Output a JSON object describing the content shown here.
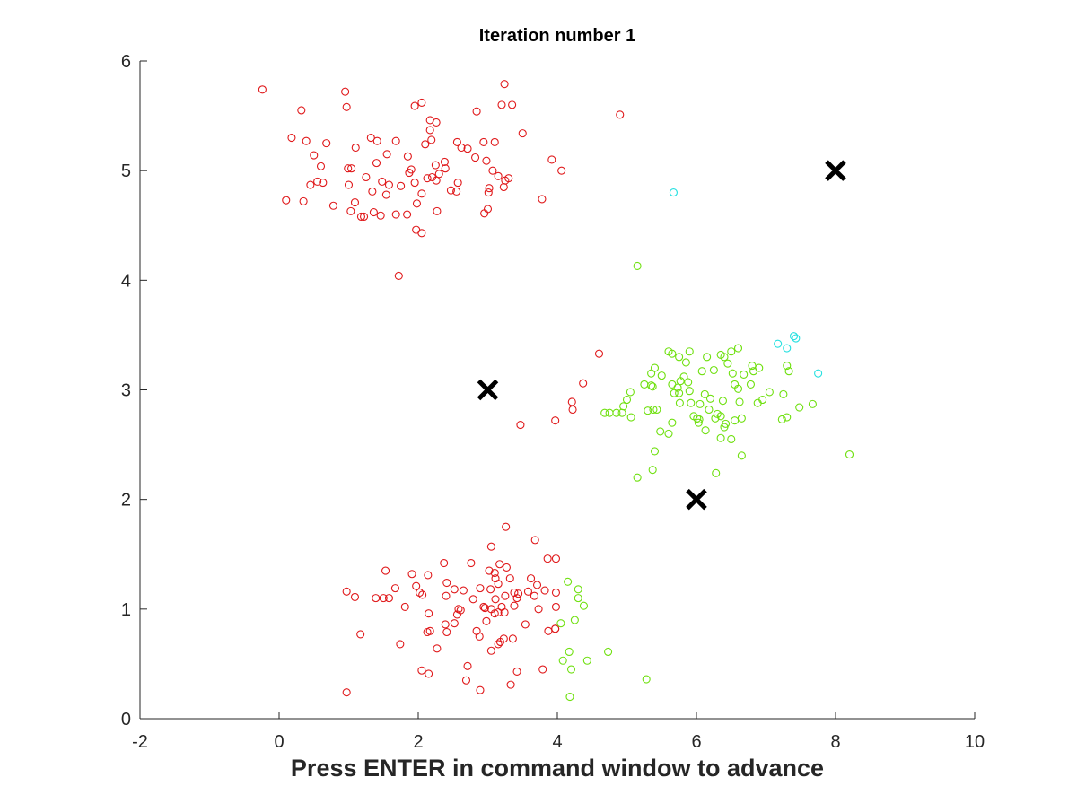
{
  "chart_data": {
    "type": "scatter",
    "title": "Iteration number 1",
    "xlabel": "Press ENTER in command window to advance",
    "ylabel": "",
    "xlim": [
      -2,
      10
    ],
    "ylim": [
      0,
      6
    ],
    "xticks": [
      -2,
      0,
      2,
      4,
      6,
      8,
      10
    ],
    "yticks": [
      0,
      1,
      2,
      3,
      4,
      5,
      6
    ],
    "grid": false,
    "legend": "none",
    "marker": "open-circle",
    "series": [
      {
        "color": "#e0191b",
        "points": [
          [
            -0.24,
            5.74
          ],
          [
            0.95,
            5.72
          ],
          [
            0.97,
            5.58
          ],
          [
            0.32,
            5.55
          ],
          [
            1.95,
            5.59
          ],
          [
            2.05,
            5.62
          ],
          [
            3.24,
            5.79
          ],
          [
            3.2,
            5.6
          ],
          [
            3.35,
            5.6
          ],
          [
            2.84,
            5.54
          ],
          [
            4.9,
            5.51
          ],
          [
            2.17,
            5.46
          ],
          [
            2.26,
            5.44
          ],
          [
            2.17,
            5.37
          ],
          [
            3.5,
            5.34
          ],
          [
            0.18,
            5.3
          ],
          [
            0.39,
            5.27
          ],
          [
            0.68,
            5.25
          ],
          [
            1.32,
            5.3
          ],
          [
            1.41,
            5.27
          ],
          [
            1.68,
            5.27
          ],
          [
            2.1,
            5.24
          ],
          [
            2.19,
            5.28
          ],
          [
            2.56,
            5.26
          ],
          [
            2.62,
            5.21
          ],
          [
            2.71,
            5.2
          ],
          [
            2.94,
            5.26
          ],
          [
            3.1,
            5.26
          ],
          [
            1.1,
            5.21
          ],
          [
            1.55,
            5.15
          ],
          [
            0.5,
            5.14
          ],
          [
            1.85,
            5.13
          ],
          [
            3.92,
            5.1
          ],
          [
            2.38,
            5.08
          ],
          [
            2.82,
            5.12
          ],
          [
            2.98,
            5.09
          ],
          [
            0.6,
            5.04
          ],
          [
            0.99,
            5.02
          ],
          [
            1.04,
            5.02
          ],
          [
            1.4,
            5.07
          ],
          [
            1.9,
            5.01
          ],
          [
            2.25,
            5.05
          ],
          [
            2.39,
            5.02
          ],
          [
            3.07,
            5.0
          ],
          [
            4.06,
            5.0
          ],
          [
            1.87,
            4.98
          ],
          [
            2.3,
            4.97
          ],
          [
            3.15,
            4.95
          ],
          [
            3.3,
            4.93
          ],
          [
            1.25,
            4.94
          ],
          [
            2.2,
            4.94
          ],
          [
            2.26,
            4.91
          ],
          [
            2.13,
            4.93
          ],
          [
            3.25,
            4.91
          ],
          [
            1.48,
            4.9
          ],
          [
            1.95,
            4.89
          ],
          [
            0.55,
            4.9
          ],
          [
            0.63,
            4.89
          ],
          [
            0.45,
            4.87
          ],
          [
            1.0,
            4.87
          ],
          [
            1.58,
            4.87
          ],
          [
            2.57,
            4.89
          ],
          [
            3.23,
            4.85
          ],
          [
            3.02,
            4.84
          ],
          [
            3.01,
            4.8
          ],
          [
            1.34,
            4.81
          ],
          [
            1.75,
            4.86
          ],
          [
            1.54,
            4.78
          ],
          [
            2.47,
            4.82
          ],
          [
            2.55,
            4.81
          ],
          [
            2.05,
            4.79
          ],
          [
            0.1,
            4.73
          ],
          [
            0.35,
            4.72
          ],
          [
            3.78,
            4.74
          ],
          [
            1.09,
            4.71
          ],
          [
            1.98,
            4.7
          ],
          [
            1.36,
            4.62
          ],
          [
            0.78,
            4.68
          ],
          [
            1.03,
            4.63
          ],
          [
            1.18,
            4.58
          ],
          [
            1.68,
            4.6
          ],
          [
            1.84,
            4.6
          ],
          [
            2.27,
            4.63
          ],
          [
            2.95,
            4.61
          ],
          [
            3.0,
            4.65
          ],
          [
            1.22,
            4.58
          ],
          [
            1.46,
            4.59
          ],
          [
            1.97,
            4.46
          ],
          [
            2.05,
            4.43
          ],
          [
            1.72,
            4.04
          ],
          [
            4.6,
            3.33
          ],
          [
            4.21,
            2.89
          ],
          [
            4.22,
            2.82
          ],
          [
            3.97,
            2.72
          ],
          [
            3.47,
            2.68
          ],
          [
            4.37,
            3.06
          ],
          [
            3.26,
            1.75
          ],
          [
            3.68,
            1.63
          ],
          [
            3.05,
            1.57
          ],
          [
            2.37,
            1.42
          ],
          [
            2.76,
            1.42
          ],
          [
            3.17,
            1.41
          ],
          [
            3.27,
            1.38
          ],
          [
            3.86,
            1.46
          ],
          [
            3.98,
            1.46
          ],
          [
            1.53,
            1.35
          ],
          [
            1.91,
            1.32
          ],
          [
            2.14,
            1.31
          ],
          [
            3.1,
            1.33
          ],
          [
            3.02,
            1.35
          ],
          [
            3.11,
            1.28
          ],
          [
            3.32,
            1.28
          ],
          [
            3.62,
            1.28
          ],
          [
            1.09,
            1.11
          ],
          [
            2.41,
            1.24
          ],
          [
            2.02,
            1.15
          ],
          [
            1.97,
            1.21
          ],
          [
            1.67,
            1.19
          ],
          [
            3.15,
            1.23
          ],
          [
            3.44,
            1.14
          ],
          [
            3.67,
            1.12
          ],
          [
            2.52,
            1.18
          ],
          [
            2.65,
            1.17
          ],
          [
            2.89,
            1.19
          ],
          [
            3.04,
            1.18
          ],
          [
            3.38,
            1.15
          ],
          [
            3.58,
            1.16
          ],
          [
            3.82,
            1.17
          ],
          [
            3.71,
            1.22
          ],
          [
            0.97,
            1.16
          ],
          [
            1.39,
            1.1
          ],
          [
            1.5,
            1.1
          ],
          [
            2.06,
            1.13
          ],
          [
            2.4,
            1.12
          ],
          [
            2.79,
            1.09
          ],
          [
            3.11,
            1.09
          ],
          [
            3.25,
            1.12
          ],
          [
            3.42,
            1.1
          ],
          [
            3.98,
            1.15
          ],
          [
            2.58,
            1.0
          ],
          [
            2.61,
            0.99
          ],
          [
            1.58,
            1.1
          ],
          [
            1.81,
            1.02
          ],
          [
            2.94,
            1.02
          ],
          [
            2.96,
            1.01
          ],
          [
            3.2,
            1.02
          ],
          [
            3.05,
            1.0
          ],
          [
            3.24,
            0.97
          ],
          [
            3.38,
            1.03
          ],
          [
            3.73,
            1.0
          ],
          [
            3.98,
            1.02
          ],
          [
            2.15,
            0.96
          ],
          [
            2.56,
            0.95
          ],
          [
            3.1,
            0.96
          ],
          [
            3.15,
            0.97
          ],
          [
            2.52,
            0.87
          ],
          [
            2.98,
            0.89
          ],
          [
            2.39,
            0.86
          ],
          [
            3.54,
            0.86
          ],
          [
            2.17,
            0.8
          ],
          [
            2.13,
            0.79
          ],
          [
            2.41,
            0.79
          ],
          [
            2.84,
            0.8
          ],
          [
            2.88,
            0.75
          ],
          [
            3.23,
            0.73
          ],
          [
            3.87,
            0.8
          ],
          [
            3.97,
            0.82
          ],
          [
            1.17,
            0.77
          ],
          [
            3.36,
            0.73
          ],
          [
            2.27,
            0.64
          ],
          [
            3.05,
            0.62
          ],
          [
            1.74,
            0.68
          ],
          [
            3.15,
            0.68
          ],
          [
            3.18,
            0.7
          ],
          [
            2.71,
            0.48
          ],
          [
            2.05,
            0.44
          ],
          [
            3.79,
            0.45
          ],
          [
            2.15,
            0.41
          ],
          [
            3.42,
            0.43
          ],
          [
            2.69,
            0.35
          ],
          [
            3.33,
            0.31
          ],
          [
            2.89,
            0.26
          ],
          [
            0.97,
            0.24
          ],
          [
            3.97,
            0.82
          ]
        ]
      },
      {
        "color": "#6fe00f",
        "points": [
          [
            5.15,
            4.13
          ],
          [
            5.6,
            3.35
          ],
          [
            5.65,
            3.33
          ],
          [
            5.9,
            3.35
          ],
          [
            6.5,
            3.35
          ],
          [
            6.6,
            3.38
          ],
          [
            6.35,
            3.32
          ],
          [
            6.8,
            3.22
          ],
          [
            6.9,
            3.2
          ],
          [
            5.4,
            3.2
          ],
          [
            5.75,
            3.3
          ],
          [
            5.85,
            3.25
          ],
          [
            6.15,
            3.3
          ],
          [
            6.4,
            3.3
          ],
          [
            6.45,
            3.24
          ],
          [
            5.5,
            3.13
          ],
          [
            5.35,
            3.15
          ],
          [
            5.25,
            3.05
          ],
          [
            5.82,
            3.12
          ],
          [
            6.08,
            3.17
          ],
          [
            6.25,
            3.18
          ],
          [
            6.52,
            3.15
          ],
          [
            6.68,
            3.14
          ],
          [
            6.82,
            3.17
          ],
          [
            7.3,
            3.22
          ],
          [
            7.33,
            3.17
          ],
          [
            5.77,
            3.08
          ],
          [
            5.88,
            3.07
          ],
          [
            6.55,
            3.05
          ],
          [
            6.78,
            3.05
          ],
          [
            7.05,
            2.98
          ],
          [
            5.05,
            2.98
          ],
          [
            5.35,
            3.04
          ],
          [
            5.37,
            3.03
          ],
          [
            5.65,
            3.05
          ],
          [
            5.73,
            3.02
          ],
          [
            5.9,
            2.99
          ],
          [
            6.12,
            2.96
          ],
          [
            6.2,
            2.92
          ],
          [
            6.6,
            3.01
          ],
          [
            6.95,
            2.91
          ],
          [
            5.0,
            2.91
          ],
          [
            4.95,
            2.85
          ],
          [
            5.38,
            2.82
          ],
          [
            5.43,
            2.82
          ],
          [
            5.75,
            2.97
          ],
          [
            5.76,
            2.88
          ],
          [
            5.68,
            2.97
          ],
          [
            5.92,
            2.88
          ],
          [
            6.05,
            2.87
          ],
          [
            6.18,
            2.82
          ],
          [
            6.35,
            2.76
          ],
          [
            6.38,
            2.9
          ],
          [
            6.62,
            2.89
          ],
          [
            6.88,
            2.88
          ],
          [
            7.25,
            2.96
          ],
          [
            4.75,
            2.79
          ],
          [
            4.85,
            2.79
          ],
          [
            5.06,
            2.75
          ],
          [
            5.3,
            2.81
          ],
          [
            5.96,
            2.76
          ],
          [
            6.01,
            2.74
          ],
          [
            6.04,
            2.73
          ],
          [
            6.03,
            2.7
          ],
          [
            6.27,
            2.74
          ],
          [
            6.3,
            2.78
          ],
          [
            6.55,
            2.72
          ],
          [
            6.42,
            2.69
          ],
          [
            6.65,
            2.74
          ],
          [
            7.23,
            2.73
          ],
          [
            7.3,
            2.75
          ],
          [
            7.48,
            2.84
          ],
          [
            7.67,
            2.87
          ],
          [
            4.93,
            2.79
          ],
          [
            4.68,
            2.79
          ],
          [
            5.48,
            2.62
          ],
          [
            5.65,
            2.7
          ],
          [
            5.6,
            2.6
          ],
          [
            6.13,
            2.63
          ],
          [
            6.4,
            2.66
          ],
          [
            6.35,
            2.56
          ],
          [
            6.5,
            2.55
          ],
          [
            6.65,
            2.4
          ],
          [
            5.4,
            2.44
          ],
          [
            5.37,
            2.27
          ],
          [
            5.15,
            2.2
          ],
          [
            6.28,
            2.24
          ],
          [
            8.2,
            2.41
          ],
          [
            4.15,
            1.25
          ],
          [
            4.3,
            1.18
          ],
          [
            4.3,
            1.1
          ],
          [
            4.38,
            1.03
          ],
          [
            4.05,
            0.87
          ],
          [
            4.25,
            0.9
          ],
          [
            4.17,
            0.61
          ],
          [
            4.73,
            0.61
          ],
          [
            4.08,
            0.53
          ],
          [
            4.43,
            0.53
          ],
          [
            4.2,
            0.45
          ],
          [
            5.28,
            0.36
          ],
          [
            4.18,
            0.2
          ]
        ]
      },
      {
        "color": "#25e0e0",
        "points": [
          [
            5.67,
            4.8
          ],
          [
            7.4,
            3.49
          ],
          [
            7.43,
            3.47
          ],
          [
            7.17,
            3.42
          ],
          [
            7.3,
            3.38
          ],
          [
            7.75,
            3.15
          ]
        ]
      }
    ],
    "centroids": {
      "color": "#000000",
      "marker": "x",
      "points": [
        [
          3,
          3
        ],
        [
          6,
          2
        ],
        [
          8,
          5
        ]
      ]
    }
  }
}
